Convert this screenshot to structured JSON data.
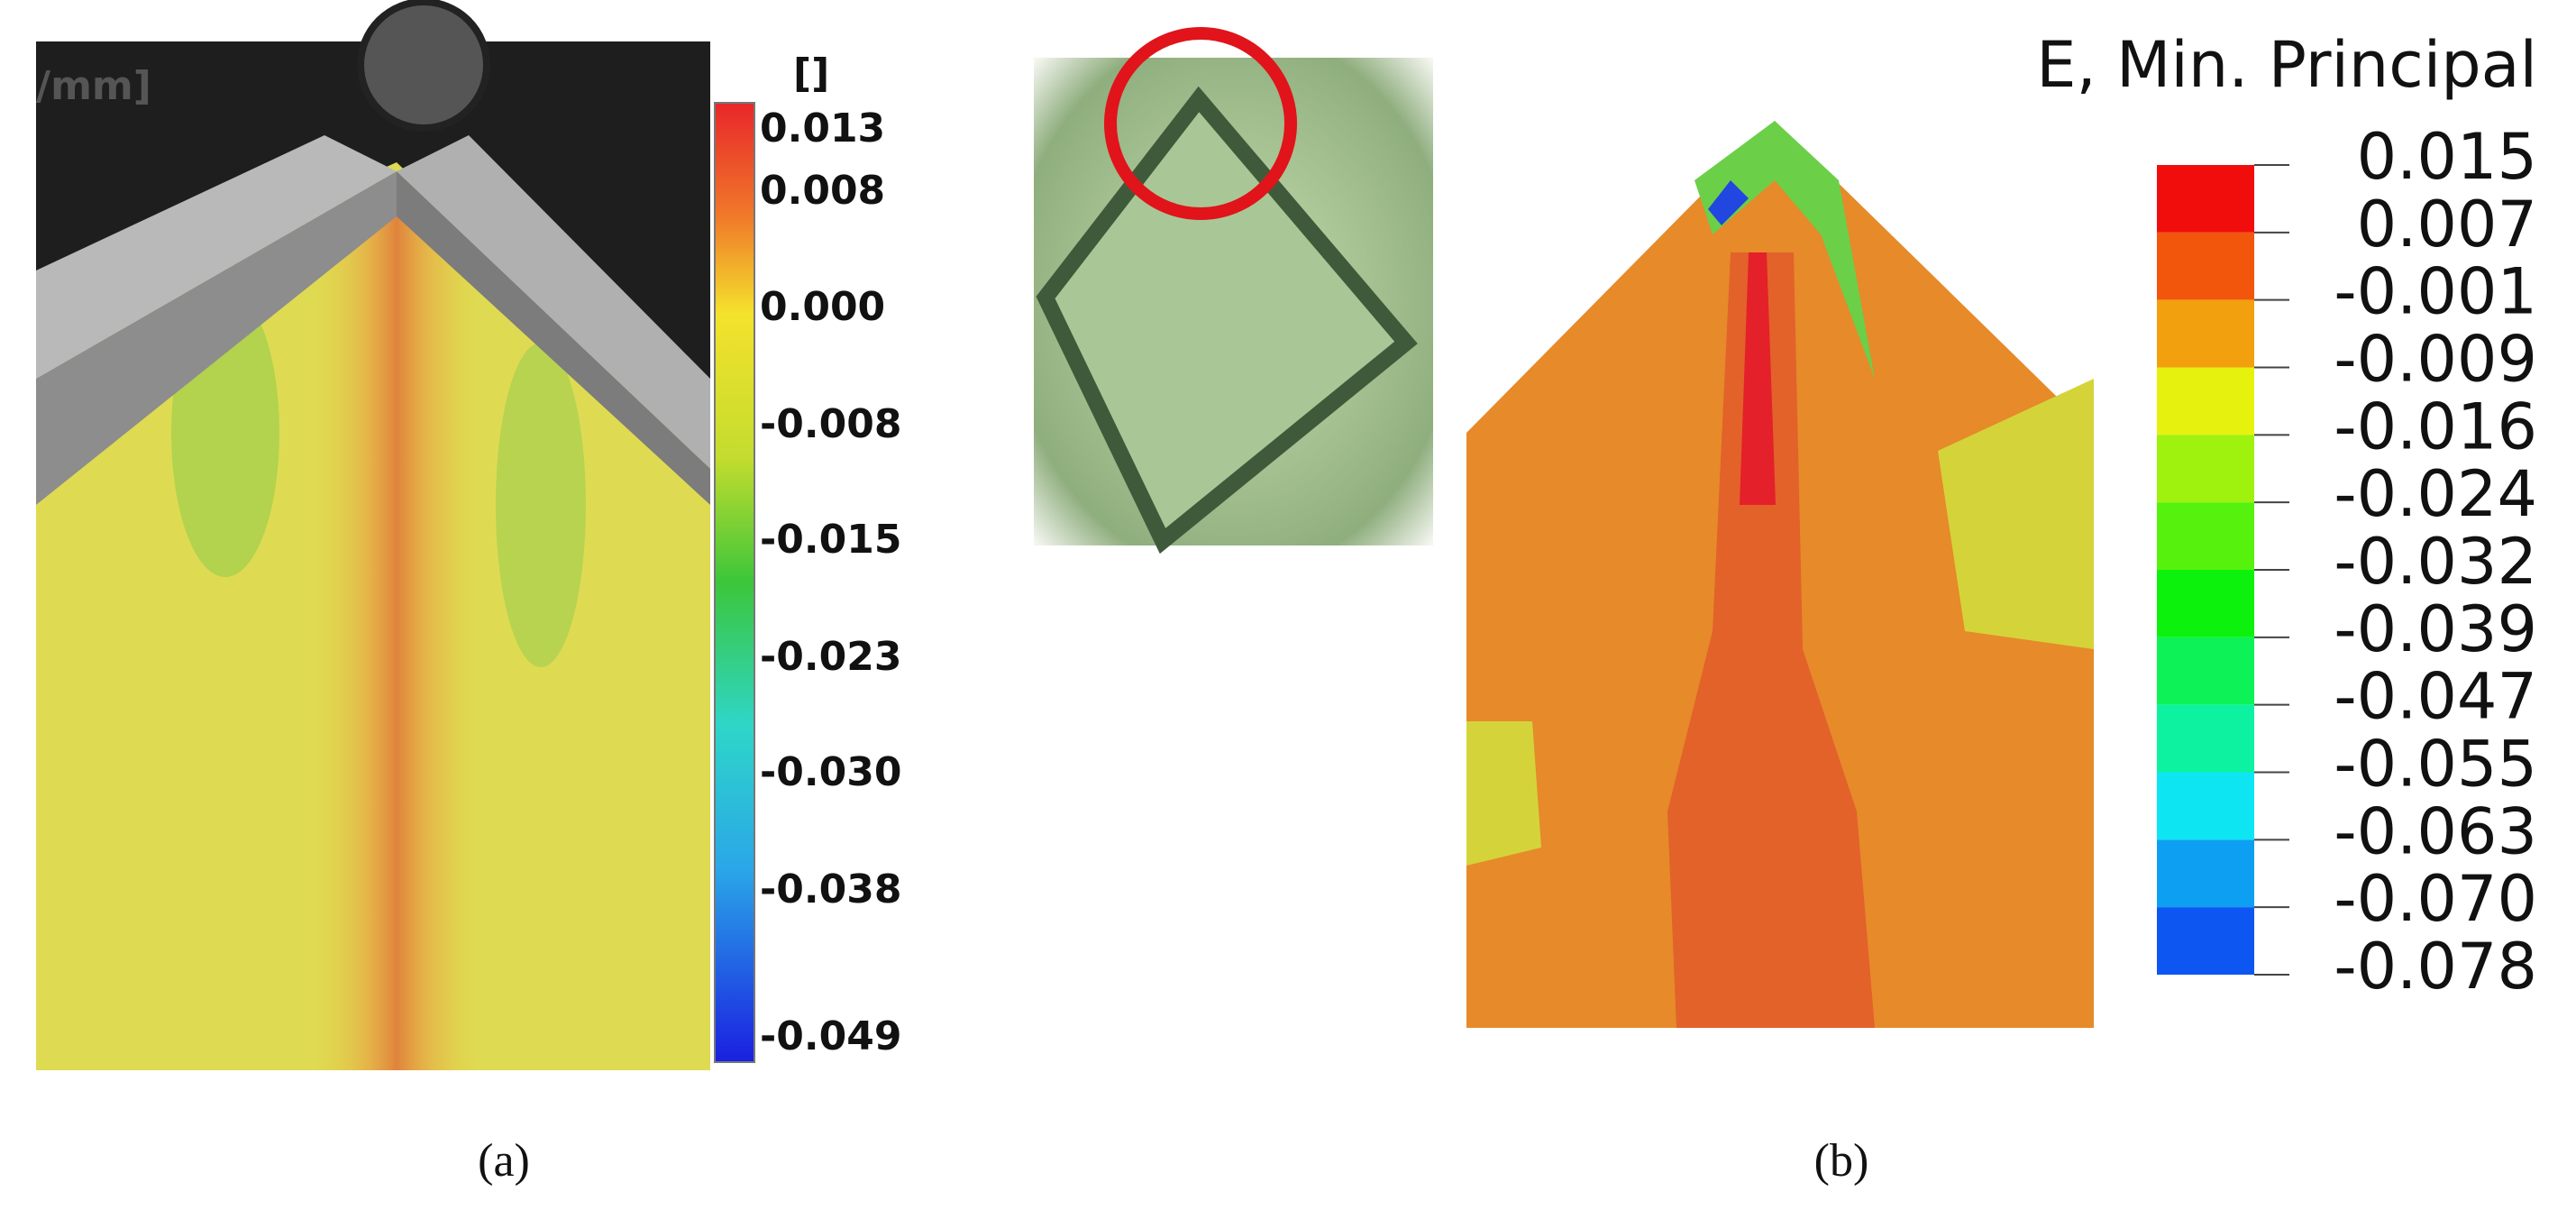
{
  "panel_a": {
    "axis_fragment": "/mm]",
    "unit_label": "[]",
    "colorbar_labels": [
      "0.013",
      "0.008",
      "0.000",
      "-0.008",
      "-0.015",
      "-0.023",
      "-0.030",
      "-0.038",
      "-0.049"
    ],
    "caption": "(a)"
  },
  "panel_b": {
    "title": "E, Min. Principal",
    "legend_labels": [
      "0.015",
      "0.007",
      "-0.001",
      "-0.009",
      "-0.016",
      "-0.024",
      "-0.032",
      "-0.039",
      "-0.047",
      "-0.055",
      "-0.063",
      "-0.070",
      "-0.078"
    ],
    "caption": "(b)"
  }
}
